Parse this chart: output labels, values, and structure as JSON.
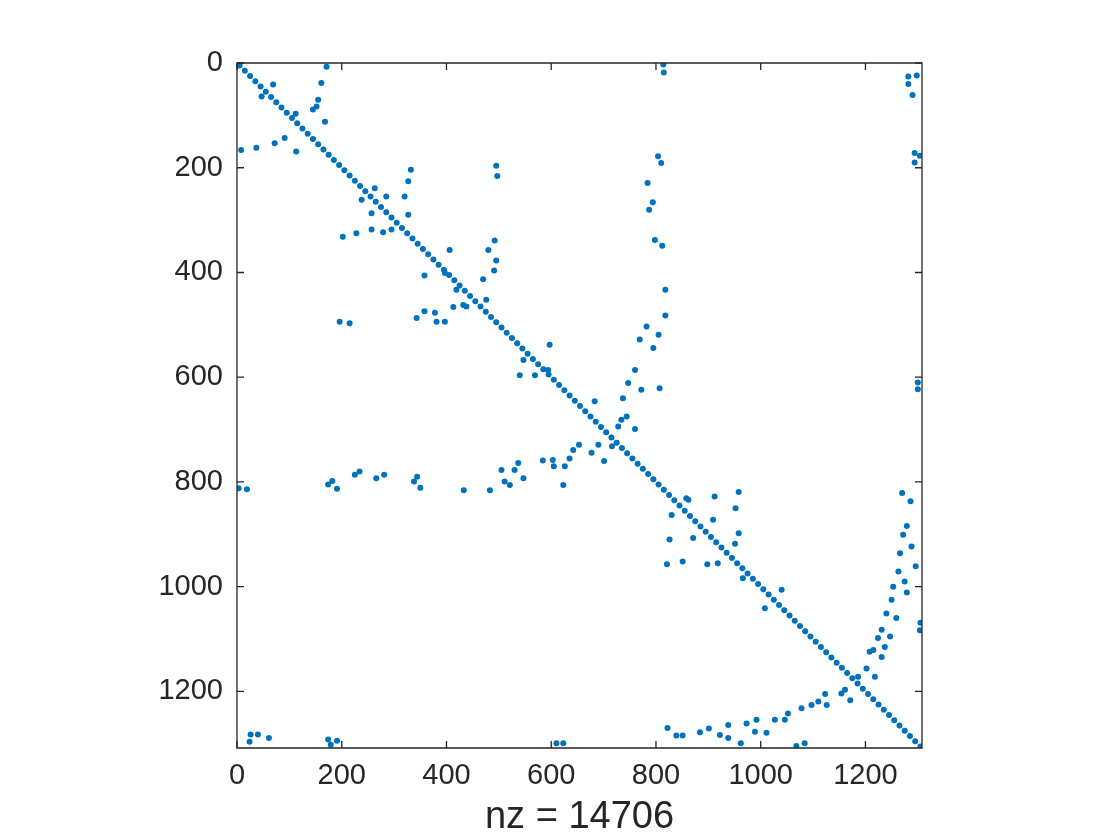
{
  "chart_data": {
    "type": "scatter",
    "xlabel": "nz = 14706",
    "xlim": [
      0,
      1308
    ],
    "ylim": [
      1308,
      0
    ],
    "xticks": [
      0,
      200,
      400,
      600,
      800,
      1000,
      1200
    ],
    "yticks": [
      0,
      200,
      400,
      600,
      800,
      1000,
      1200
    ],
    "grid": false,
    "legend": false,
    "marker": "circle",
    "series": [
      {
        "color": "#0072bd",
        "x": [
          5,
          15,
          25,
          35,
          45,
          55,
          65,
          75,
          85,
          95,
          105,
          115,
          125,
          135,
          145,
          155,
          165,
          175,
          185,
          195,
          205,
          215,
          225,
          235,
          245,
          255,
          265,
          275,
          285,
          295,
          305,
          315,
          325,
          335,
          345,
          355,
          365,
          375,
          385,
          395,
          405,
          415,
          425,
          435,
          445,
          455,
          465,
          475,
          485,
          495,
          505,
          515,
          525,
          535,
          545,
          555,
          565,
          575,
          585,
          595,
          605,
          615,
          625,
          635,
          645,
          655,
          665,
          675,
          685,
          695,
          705,
          715,
          725,
          735,
          745,
          755,
          765,
          775,
          785,
          795,
          805,
          815,
          825,
          835,
          845,
          855,
          865,
          875,
          885,
          895,
          905,
          915,
          925,
          935,
          945,
          955,
          965,
          975,
          985,
          995,
          1005,
          1015,
          1025,
          1035,
          1045,
          1055,
          1065,
          1075,
          1085,
          1095,
          1105,
          1115,
          1125,
          1135,
          1145,
          1155,
          1165,
          1175,
          1185,
          1195,
          1205,
          1215,
          1225,
          1235,
          1245,
          1255,
          1265,
          1275,
          1285,
          1295,
          1305
        ],
        "values": [
          5,
          15,
          25,
          35,
          45,
          55,
          65,
          75,
          85,
          95,
          105,
          115,
          125,
          135,
          145,
          155,
          165,
          175,
          185,
          195,
          205,
          215,
          225,
          235,
          245,
          255,
          265,
          275,
          285,
          295,
          305,
          315,
          325,
          335,
          345,
          355,
          365,
          375,
          385,
          395,
          405,
          415,
          425,
          435,
          445,
          455,
          465,
          475,
          485,
          495,
          505,
          515,
          525,
          535,
          545,
          555,
          565,
          575,
          585,
          595,
          605,
          615,
          625,
          635,
          645,
          655,
          665,
          675,
          685,
          695,
          705,
          715,
          725,
          735,
          745,
          755,
          765,
          775,
          785,
          795,
          805,
          815,
          825,
          835,
          845,
          855,
          865,
          875,
          885,
          895,
          905,
          915,
          925,
          935,
          945,
          955,
          965,
          975,
          985,
          995,
          1005,
          1015,
          1025,
          1035,
          1045,
          1055,
          1065,
          1075,
          1085,
          1095,
          1105,
          1115,
          1125,
          1135,
          1145,
          1155,
          1165,
          1175,
          1185,
          1195,
          1205,
          1215,
          1225,
          1235,
          1245,
          1255,
          1265,
          1275,
          1285,
          1295,
          1305
        ]
      },
      {
        "color": "#0072bd",
        "x": [
          171,
          161,
          155,
          145,
          168,
          152,
          8,
          37,
          72,
          91,
          113,
          47,
          69,
          112,
          332,
          327,
          320,
          327,
          285,
          263,
          238,
          257,
          295,
          202,
          228,
          257,
          279,
          358,
          406,
          397,
          419,
          196,
          215,
          343,
          358,
          381,
          397,
          413,
          432,
          378,
          814,
          815,
          495,
          497,
          804,
          810,
          784,
          794,
          787,
          798,
          812,
          492,
          480,
          495,
          491,
          470,
          438,
          476,
          818,
          818,
          782,
          769,
          795,
          805,
          760,
          747,
          737,
          772,
          807,
          597,
          547,
          540,
          569,
          594,
          683,
          1282,
          1298,
          1282,
          1290,
          1294,
          1304,
          1294,
          1300,
          1300,
          3,
          19,
          174,
          182,
          191,
          225,
          234,
          266,
          281,
          338,
          344,
          350,
          433,
          26,
          24,
          40,
          61,
          174,
          179,
          191,
          483,
          505,
          511,
          521,
          530,
          537,
          547,
          584,
          603,
          605,
          623,
          626,
          635,
          642,
          653,
          677,
          701,
          690,
          716,
          728,
          734,
          760,
          744,
          826,
          821,
          851,
          862,
          830,
          822,
          839,
          851,
          610,
          623,
          912,
          958,
          952,
          958,
          909,
          951,
          871,
          898,
          918,
          966,
          1008,
          1040,
          1270,
          1286,
          1279,
          1272,
          1288,
          1266,
          1296,
          1263,
          1275,
          1279,
          1253,
          1250,
          1240,
          1259,
          1231,
          1247,
          1224,
          1215,
          1231,
          1237,
          1208,
          1305,
          1304,
          1202,
          1218,
          1161,
          1171,
          1186,
          1154,
          1123,
          1126,
          1110,
          1097,
          1078,
          1052,
          1046,
          1027,
          992,
          973,
          989,
          1011,
          938,
          922,
          938,
          884,
          901,
          962,
          1068,
          1084,
          858
        ],
        "values": [
          7,
          38,
          70,
          89,
          112,
          83,
          166,
          162,
          153,
          143,
          169,
          64,
          41,
          97,
          204,
          226,
          255,
          290,
          255,
          239,
          261,
          287,
          318,
          332,
          325,
          318,
          323,
          406,
          357,
          401,
          433,
          494,
          497,
          487,
          474,
          494,
          494,
          466,
          462,
          477,
          3,
          18,
          196,
          216,
          178,
          191,
          229,
          266,
          280,
          338,
          349,
          339,
          357,
          377,
          396,
          413,
          465,
          452,
          433,
          482,
          503,
          528,
          544,
          519,
          586,
          611,
          640,
          624,
          621,
          538,
          567,
          596,
          596,
          586,
          646,
          26,
          24,
          40,
          61,
          172,
          177,
          190,
          610,
          623,
          812,
          814,
          805,
          798,
          813,
          786,
          780,
          793,
          786,
          799,
          790,
          811,
          816,
          1282,
          1296,
          1282,
          1289,
          1292,
          1302,
          1294,
          816,
          777,
          799,
          806,
          777,
          764,
          793,
          759,
          758,
          770,
          806,
          770,
          755,
          739,
          729,
          744,
          760,
          729,
          732,
          694,
          681,
          699,
          675,
          910,
          957,
          952,
          834,
          863,
          1270,
          1284,
          1284,
          1299,
          1299,
          828,
          819,
          850,
          898,
          872,
          918,
          907,
          957,
          955,
          984,
          1041,
          1006,
          821,
          837,
          884,
          901,
          923,
          936,
          961,
          971,
          990,
          1011,
          1000,
          1025,
          1051,
          1060,
          1082,
          1095,
          1098,
          1121,
          1134,
          1115,
          1124,
          1069,
          1083,
          1156,
          1172,
          1197,
          1217,
          1172,
          1204,
          1205,
          1226,
          1219,
          1226,
          1232,
          1242,
          1254,
          1254,
          1254,
          1261,
          1277,
          1279,
          1264,
          1283,
          1289,
          1278,
          1271,
          1299,
          1304,
          1299,
          831
        ]
      }
    ]
  }
}
